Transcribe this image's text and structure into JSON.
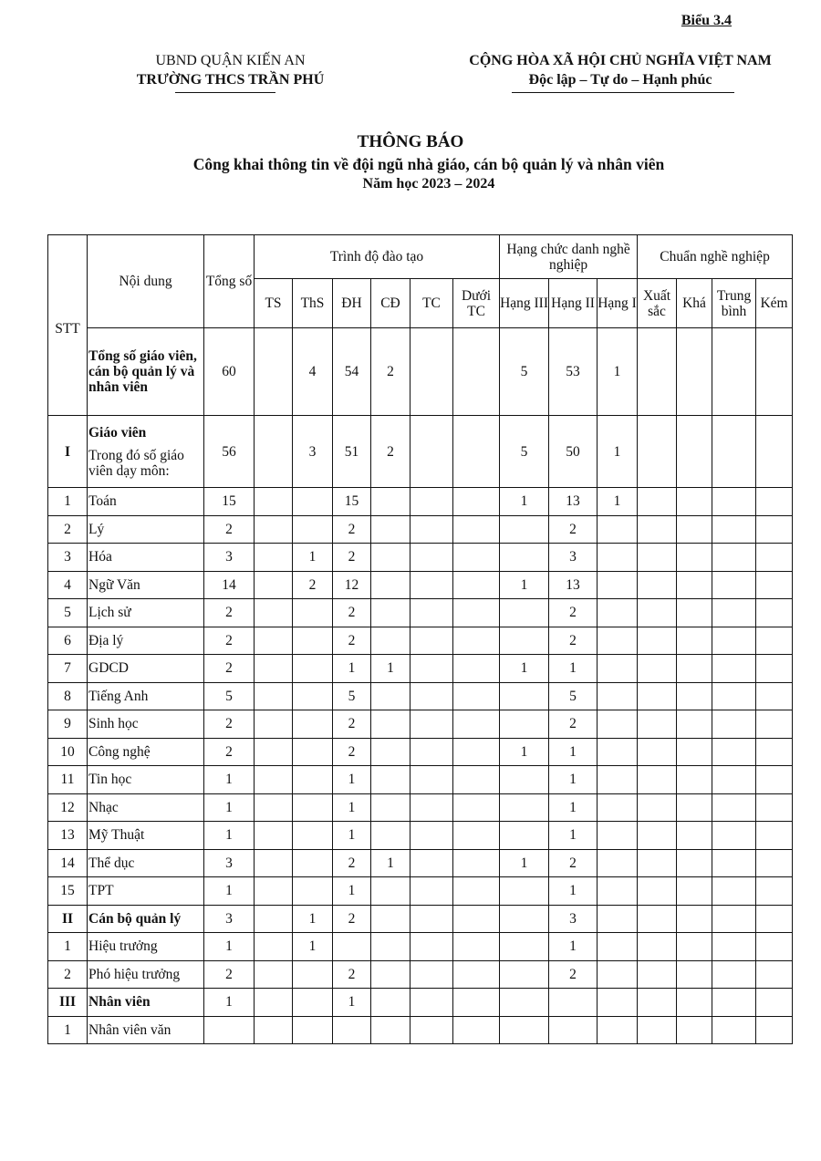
{
  "form_label": "Biểu 3.4",
  "org": {
    "line1": "UBND QUẬN KIẾN AN",
    "line2": "TRƯỜNG THCS TRẦN PHÚ"
  },
  "nation": {
    "line1": "CỘNG HÒA XÃ HỘI CHỦ NGHĨA VIỆT NAM",
    "line2": "Độc lập – Tự do – Hạnh phúc"
  },
  "title": "THÔNG BÁO",
  "subtitle": "Công khai thông tin về đội ngũ nhà giáo, cán bộ quản lý và nhân viên",
  "year": "Năm học 2023 – 2024",
  "table": {
    "headers": {
      "stt": "STT",
      "content": "Nội dung",
      "total": "Tổng số",
      "group_training": "Trình độ đào tạo",
      "group_rank": "Hạng chức danh nghề nghiệp",
      "group_standard": "Chuẩn nghề nghiệp",
      "sub": [
        "TS",
        "ThS",
        "ĐH",
        "CĐ",
        "TC",
        "Dưới TC",
        "Hạng III",
        "Hạng II",
        "Hạng I",
        "Xuất sắc",
        "Khá",
        "Trung bình",
        "Kém"
      ]
    },
    "rows": [
      {
        "stt": "",
        "content": "Tổng số giáo viên, cán bộ quản lý và nhân viên",
        "bold": true,
        "type": "tot",
        "values": [
          "60",
          "",
          "4",
          "54",
          "2",
          "",
          "",
          "5",
          "53",
          "1",
          "",
          "",
          "",
          ""
        ]
      },
      {
        "stt": "I",
        "content": "Giáo viên",
        "note": "Trong đó số giáo viên dạy môn:",
        "bold": true,
        "type": "gv",
        "values": [
          "56",
          "",
          "3",
          "51",
          "2",
          "",
          "",
          "5",
          "50",
          "1",
          "",
          "",
          "",
          ""
        ]
      },
      {
        "stt": "1",
        "content": "Toán",
        "values": [
          "15",
          "",
          "",
          "15",
          "",
          "",
          "",
          "1",
          "13",
          "1",
          "",
          "",
          "",
          ""
        ]
      },
      {
        "stt": "2",
        "content": "Lý",
        "values": [
          "2",
          "",
          "",
          "2",
          "",
          "",
          "",
          "",
          "2",
          "",
          "",
          "",
          "",
          ""
        ]
      },
      {
        "stt": "3",
        "content": "Hóa",
        "values": [
          "3",
          "",
          "1",
          "2",
          "",
          "",
          "",
          "",
          "3",
          "",
          "",
          "",
          "",
          ""
        ]
      },
      {
        "stt": "4",
        "content": "Ngữ Văn",
        "values": [
          "14",
          "",
          "2",
          "12",
          "",
          "",
          "",
          "1",
          "13",
          "",
          "",
          "",
          "",
          ""
        ]
      },
      {
        "stt": "5",
        "content": "Lịch sử",
        "values": [
          "2",
          "",
          "",
          "2",
          "",
          "",
          "",
          "",
          "2",
          "",
          "",
          "",
          "",
          ""
        ]
      },
      {
        "stt": "6",
        "content": "Địa lý",
        "values": [
          "2",
          "",
          "",
          "2",
          "",
          "",
          "",
          "",
          "2",
          "",
          "",
          "",
          "",
          ""
        ]
      },
      {
        "stt": "7",
        "content": "GDCD",
        "values": [
          "2",
          "",
          "",
          "1",
          "1",
          "",
          "",
          "1",
          "1",
          "",
          "",
          "",
          "",
          ""
        ]
      },
      {
        "stt": "8",
        "content": "Tiếng Anh",
        "values": [
          "5",
          "",
          "",
          "5",
          "",
          "",
          "",
          "",
          "5",
          "",
          "",
          "",
          "",
          ""
        ]
      },
      {
        "stt": "9",
        "content": "Sinh học",
        "values": [
          "2",
          "",
          "",
          "2",
          "",
          "",
          "",
          "",
          "2",
          "",
          "",
          "",
          "",
          ""
        ]
      },
      {
        "stt": "10",
        "content": "Công nghệ",
        "values": [
          "2",
          "",
          "",
          "2",
          "",
          "",
          "",
          "1",
          "1",
          "",
          "",
          "",
          "",
          ""
        ]
      },
      {
        "stt": "11",
        "content": "Tin học",
        "values": [
          "1",
          "",
          "",
          "1",
          "",
          "",
          "",
          "",
          "1",
          "",
          "",
          "",
          "",
          ""
        ]
      },
      {
        "stt": "12",
        "content": "Nhạc",
        "values": [
          "1",
          "",
          "",
          "1",
          "",
          "",
          "",
          "",
          "1",
          "",
          "",
          "",
          "",
          ""
        ]
      },
      {
        "stt": "13",
        "content": "Mỹ Thuật",
        "values": [
          "1",
          "",
          "",
          "1",
          "",
          "",
          "",
          "",
          "1",
          "",
          "",
          "",
          "",
          ""
        ]
      },
      {
        "stt": "14",
        "content": "Thể dục",
        "values": [
          "3",
          "",
          "",
          "2",
          "1",
          "",
          "",
          "1",
          "2",
          "",
          "",
          "",
          "",
          ""
        ]
      },
      {
        "stt": "15",
        "content": "TPT",
        "values": [
          "1",
          "",
          "",
          "1",
          "",
          "",
          "",
          "",
          "1",
          "",
          "",
          "",
          "",
          ""
        ]
      },
      {
        "stt": "II",
        "content": "Cán bộ quản lý",
        "bold": true,
        "values": [
          "3",
          "",
          "1",
          "2",
          "",
          "",
          "",
          "",
          "3",
          "",
          "",
          "",
          "",
          ""
        ]
      },
      {
        "stt": "1",
        "content": "Hiệu trưởng",
        "values": [
          "1",
          "",
          "1",
          "",
          "",
          "",
          "",
          "",
          "1",
          "",
          "",
          "",
          "",
          ""
        ]
      },
      {
        "stt": "2",
        "content": "Phó hiệu trưởng",
        "values": [
          "2",
          "",
          "",
          "2",
          "",
          "",
          "",
          "",
          "2",
          "",
          "",
          "",
          "",
          ""
        ]
      },
      {
        "stt": "III",
        "content": "Nhân viên",
        "bold": true,
        "values": [
          "1",
          "",
          "",
          "1",
          "",
          "",
          "",
          "",
          "",
          "",
          "",
          "",
          "",
          ""
        ]
      },
      {
        "stt": "1",
        "content": "Nhân viên văn",
        "values": [
          "",
          "",
          "",
          "",
          "",
          "",
          "",
          "",
          "",
          "",
          "",
          "",
          "",
          ""
        ]
      }
    ]
  }
}
